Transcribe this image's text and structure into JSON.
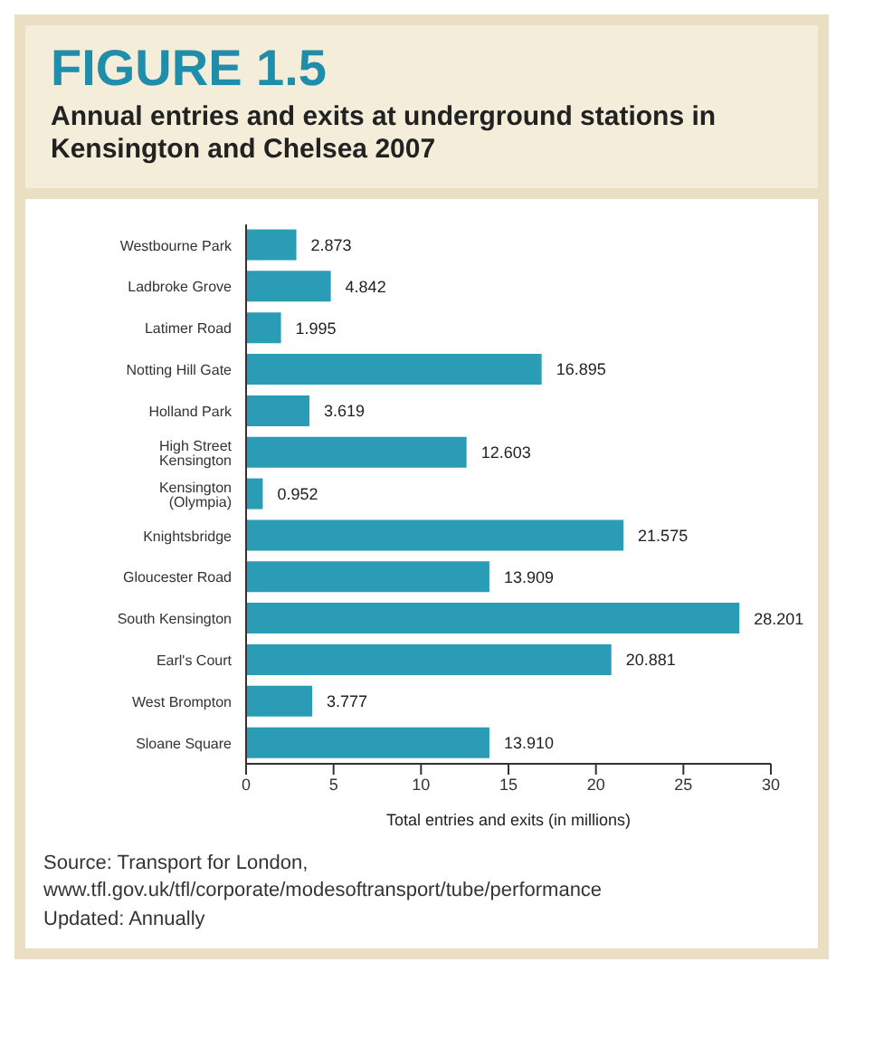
{
  "chart_data": {
    "type": "bar",
    "orientation": "horizontal",
    "title": "FIGURE 1.5",
    "subtitle": "Annual entries and exits at underground stations in Kensington and Chelsea 2007",
    "xlabel": "Total entries and exits (in millions)",
    "categories": [
      "Westbourne Park",
      "Ladbroke Grove",
      "Latimer Road",
      "Notting Hill Gate",
      "Holland Park",
      "High Street Kensington",
      "Kensington (Olympia)",
      "Knightsbridge",
      "Gloucester Road",
      "South Kensington",
      "Earl's Court",
      "West Brompton",
      "Sloane Square"
    ],
    "values": [
      2.873,
      4.842,
      1.995,
      16.895,
      3.619,
      12.603,
      0.952,
      21.575,
      13.909,
      28.201,
      20.881,
      3.777,
      13.91
    ],
    "value_labels": [
      "2.873",
      "4.842",
      "1.995",
      "16.895",
      "3.619",
      "12.603",
      "0.952",
      "21.575",
      "13.909",
      "28.201",
      "20.881",
      "3.777",
      "13.910"
    ],
    "color": "#2a9cb5",
    "xlim": [
      0,
      30
    ],
    "xticks": [
      0,
      5,
      10,
      15,
      20,
      25,
      30
    ],
    "grid": false,
    "legend": false,
    "annotations": [
      "Source:    Transport for London,",
      "www.tfl.gov.uk/tfl/corporate/modesoftransport/tube/performance",
      "Updated: Annually"
    ]
  }
}
